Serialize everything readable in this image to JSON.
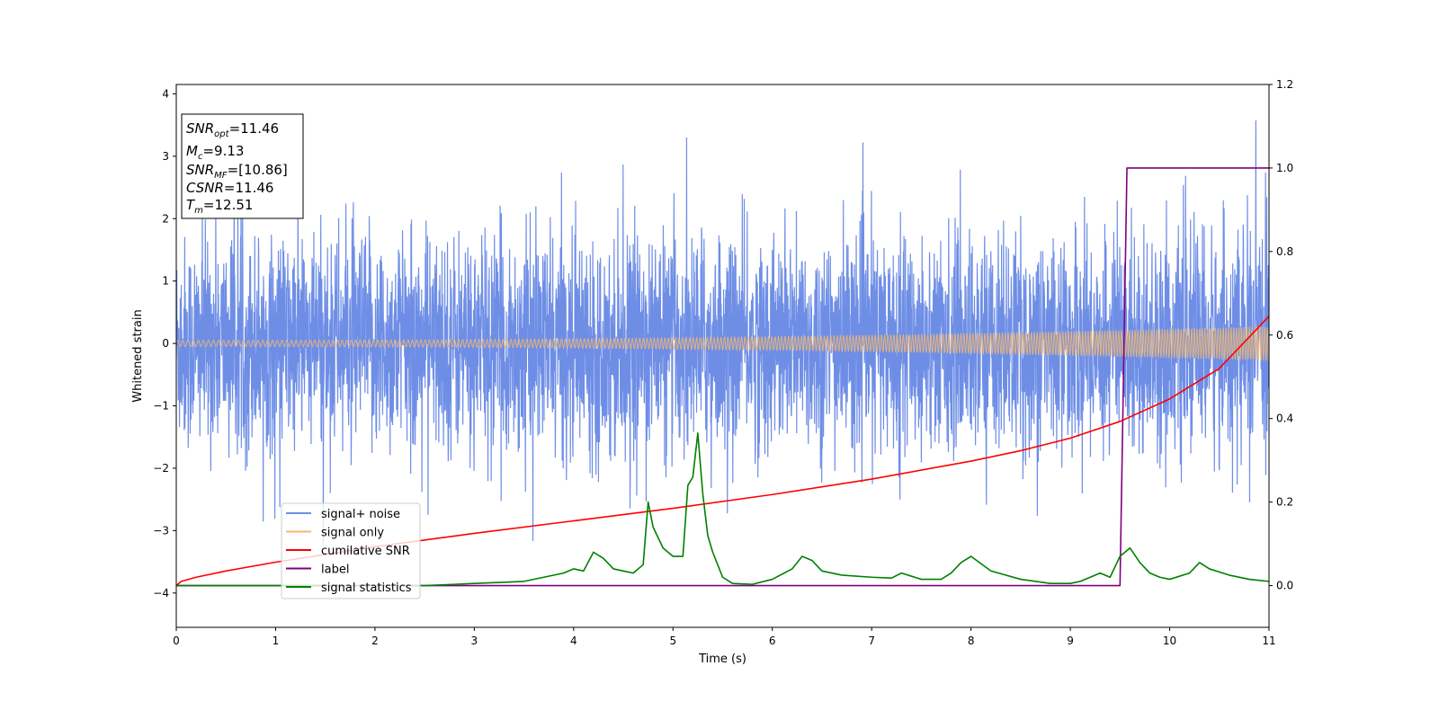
{
  "chart_data": {
    "type": "line",
    "xlabel": "Time (s)",
    "ylabel": "Whitened strain",
    "xlim": [
      0,
      11
    ],
    "ylim": [
      -4.55,
      4.15
    ],
    "y2lim": [
      -0.1,
      1.2
    ],
    "x_ticks": [
      0,
      1,
      2,
      3,
      4,
      5,
      6,
      7,
      8,
      9,
      10,
      11
    ],
    "y_ticks": [
      -4,
      -3,
      -2,
      -1,
      0,
      1,
      2,
      3,
      4
    ],
    "y2_ticks": [
      0.0,
      0.2,
      0.4,
      0.6,
      0.8,
      1.0,
      1.2
    ],
    "grid": false,
    "legend_position": "lower-left",
    "annotation": {
      "lines": [
        {
          "sym": "SNR",
          "sub": "opt",
          "rest": "=11.46"
        },
        {
          "sym": "M",
          "sub": "c",
          "rest": "=9.13"
        },
        {
          "sym": "SNR",
          "sub": "MF",
          "rest": "=[10.86]"
        },
        {
          "sym": "CSNR",
          "sub": "",
          "rest": "=11.46"
        },
        {
          "sym": "T",
          "sub": "m",
          "rest": "=12.51"
        }
      ]
    },
    "series": [
      {
        "name": "signal+ noise",
        "axis": "left",
        "color": "#6e8ee6",
        "kind": "noise",
        "envelope": {
          "typical_amplitude": 1.6,
          "max": 3.75,
          "min": -4.15
        }
      },
      {
        "name": "signal only",
        "axis": "left",
        "color": "#f5b870",
        "kind": "chirp",
        "amplitude_start": 0.05,
        "amplitude_end": 0.28
      },
      {
        "name": "cumilative SNR",
        "axis": "right",
        "color": "#ff0000",
        "x": [
          0,
          0.05,
          0.2,
          0.5,
          1,
          2,
          3,
          4,
          5,
          6,
          7,
          8,
          8.5,
          9,
          9.5,
          10,
          10.5,
          11
        ],
        "y": [
          0.0,
          0.01,
          0.02,
          0.035,
          0.056,
          0.093,
          0.125,
          0.155,
          0.185,
          0.218,
          0.255,
          0.298,
          0.323,
          0.353,
          0.393,
          0.447,
          0.52,
          0.645
        ]
      },
      {
        "name": "label",
        "axis": "right",
        "color": "#800080",
        "x": [
          0,
          9.5,
          9.57,
          11
        ],
        "y": [
          0,
          0,
          1.0,
          1.0
        ]
      },
      {
        "name": "signal statistics",
        "axis": "right",
        "color": "#008000",
        "x": [
          0,
          1,
          2,
          2.5,
          3,
          3.5,
          3.7,
          3.9,
          4.0,
          4.1,
          4.2,
          4.3,
          4.4,
          4.5,
          4.6,
          4.7,
          4.75,
          4.8,
          4.9,
          5.0,
          5.1,
          5.15,
          5.2,
          5.25,
          5.3,
          5.35,
          5.4,
          5.5,
          5.6,
          5.8,
          6.0,
          6.2,
          6.3,
          6.4,
          6.5,
          6.7,
          7.0,
          7.2,
          7.3,
          7.5,
          7.7,
          7.8,
          7.9,
          8.0,
          8.2,
          8.5,
          8.8,
          9.0,
          9.1,
          9.2,
          9.3,
          9.4,
          9.5,
          9.6,
          9.7,
          9.8,
          9.9,
          10.0,
          10.2,
          10.3,
          10.4,
          10.6,
          10.8,
          11.0
        ],
        "y": [
          0.0,
          0.0,
          0.0,
          0.0,
          0.005,
          0.01,
          0.02,
          0.03,
          0.04,
          0.035,
          0.08,
          0.065,
          0.04,
          0.035,
          0.03,
          0.05,
          0.2,
          0.14,
          0.09,
          0.07,
          0.07,
          0.24,
          0.26,
          0.365,
          0.22,
          0.12,
          0.08,
          0.02,
          0.005,
          0.003,
          0.015,
          0.04,
          0.07,
          0.06,
          0.035,
          0.025,
          0.02,
          0.018,
          0.03,
          0.015,
          0.015,
          0.03,
          0.055,
          0.07,
          0.035,
          0.015,
          0.005,
          0.005,
          0.01,
          0.02,
          0.03,
          0.02,
          0.07,
          0.09,
          0.055,
          0.03,
          0.02,
          0.015,
          0.03,
          0.055,
          0.04,
          0.025,
          0.015,
          0.01
        ]
      }
    ]
  }
}
